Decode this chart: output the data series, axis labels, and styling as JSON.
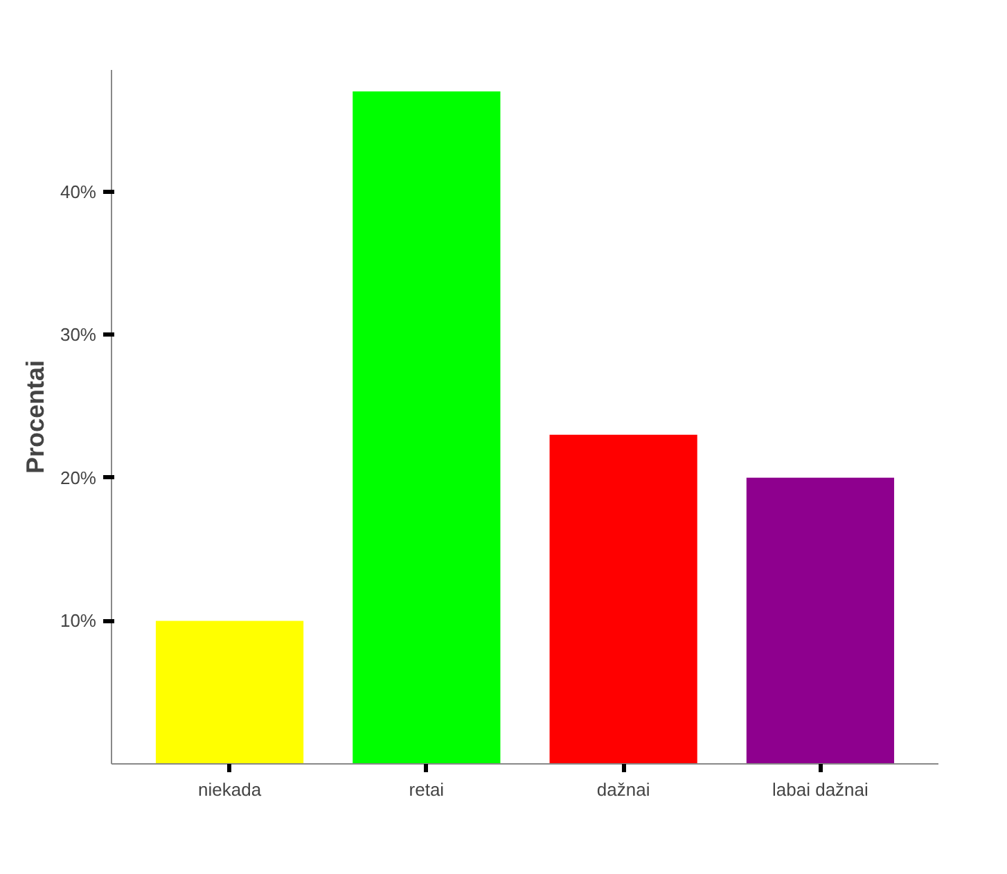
{
  "chart_data": {
    "type": "bar",
    "ylabel": "Procentai",
    "categories": [
      "niekada",
      "retai",
      "dažnai",
      "labai dažnai"
    ],
    "values": [
      10,
      47,
      23,
      20
    ],
    "colors": [
      "#ffff00",
      "#00ff00",
      "#ff0000",
      "#8e008e"
    ],
    "ylim": [
      0,
      48.5
    ],
    "yticks": [
      {
        "value": 10,
        "label": "10%"
      },
      {
        "value": 20,
        "label": "20%"
      },
      {
        "value": 30,
        "label": "30%"
      },
      {
        "value": 40,
        "label": "40%"
      }
    ],
    "grid": false
  }
}
